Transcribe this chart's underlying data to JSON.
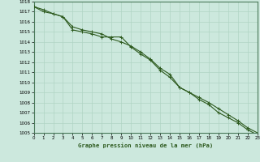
{
  "title": "Graphe pression niveau de la mer (hPa)",
  "background_color": "#cce8dd",
  "grid_color": "#b0d4c4",
  "line_color": "#2d5a1e",
  "xlim": [
    0,
    23
  ],
  "ylim": [
    1005,
    1018
  ],
  "xticks": [
    0,
    1,
    2,
    3,
    4,
    5,
    6,
    7,
    8,
    9,
    10,
    11,
    12,
    13,
    14,
    15,
    16,
    17,
    18,
    19,
    20,
    21,
    22,
    23
  ],
  "yticks": [
    1005,
    1006,
    1007,
    1008,
    1009,
    1010,
    1011,
    1012,
    1013,
    1014,
    1015,
    1016,
    1017,
    1018
  ],
  "line1_x": [
    0,
    1,
    2,
    3,
    4,
    5,
    6,
    7,
    8,
    9,
    10,
    11,
    12,
    13,
    14,
    15,
    16,
    17,
    18,
    19,
    20,
    21,
    22,
    23
  ],
  "line1_y": [
    1017.5,
    1017.0,
    1016.8,
    1016.5,
    1015.2,
    1015.0,
    1014.8,
    1014.5,
    1014.5,
    1014.5,
    1013.5,
    1012.8,
    1012.2,
    1011.2,
    1010.5,
    1009.5,
    1009.0,
    1008.3,
    1007.8,
    1007.0,
    1006.5,
    1006.0,
    1005.3,
    1004.8
  ],
  "line2_x": [
    0,
    1,
    2,
    3,
    4,
    5,
    6,
    7,
    8,
    9,
    10,
    11,
    12,
    13,
    14,
    15,
    16,
    17,
    18,
    19,
    20,
    21,
    22,
    23
  ],
  "line2_y": [
    1017.5,
    1017.2,
    1016.8,
    1016.5,
    1015.5,
    1015.2,
    1015.0,
    1014.8,
    1014.3,
    1014.0,
    1013.6,
    1013.0,
    1012.3,
    1011.4,
    1010.8,
    1009.5,
    1009.0,
    1008.5,
    1008.0,
    1007.4,
    1006.8,
    1006.2,
    1005.5,
    1005.0
  ]
}
